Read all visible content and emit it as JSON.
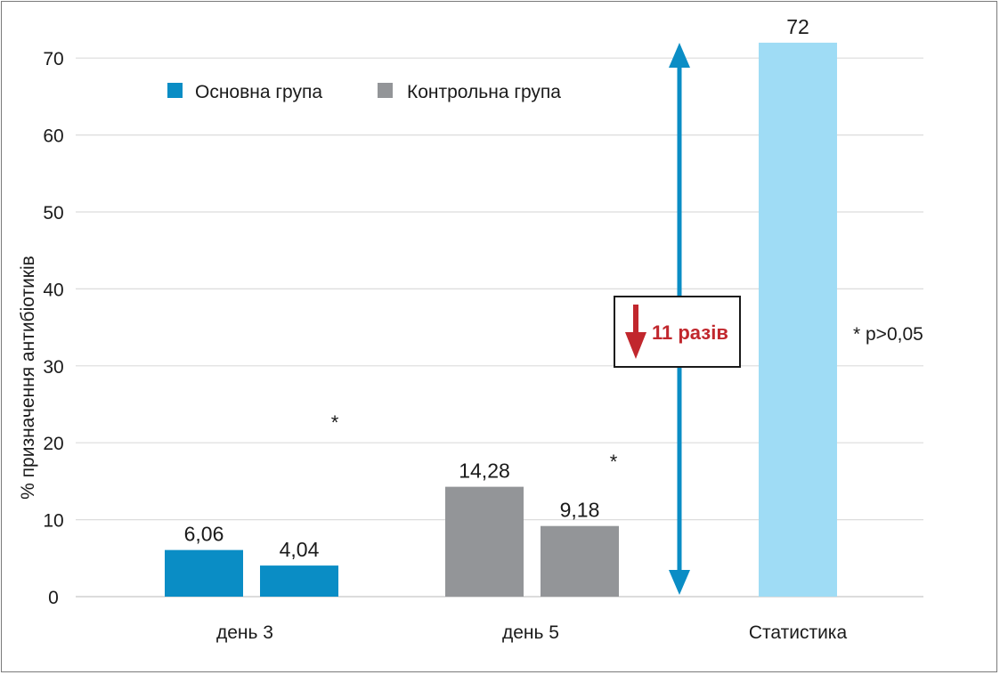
{
  "chart_data": {
    "type": "bar",
    "ylabel": "% призначення антибіотиків",
    "ylim": [
      0,
      70
    ],
    "yticks": [
      0,
      10,
      20,
      30,
      40,
      50,
      60,
      70
    ],
    "grid": true,
    "categories": [
      "день 3",
      "день 5",
      "Статистика"
    ],
    "series": [
      {
        "name": "Основна група",
        "color": "#0a8dc5",
        "values": [
          6.06,
          4.04,
          null
        ],
        "labels": [
          "6,06",
          "4,04",
          ""
        ]
      },
      {
        "name": "Контрольна група",
        "color": "#939598",
        "values": [
          14.28,
          9.18,
          null
        ],
        "labels": [
          "14,28",
          "9,18",
          ""
        ]
      },
      {
        "name": "",
        "color": "#9fdcf5",
        "values": [
          null,
          null,
          72
        ],
        "labels": [
          "",
          "",
          "72"
        ]
      }
    ],
    "legend_position": "top-left",
    "significance_markers": [
      "*",
      "*"
    ],
    "annotations": {
      "reduction_label": "11 разів",
      "reduction_color": "#c1272d",
      "arrow_color": "#0a8dc5",
      "footnote": "* p>0,05"
    }
  }
}
